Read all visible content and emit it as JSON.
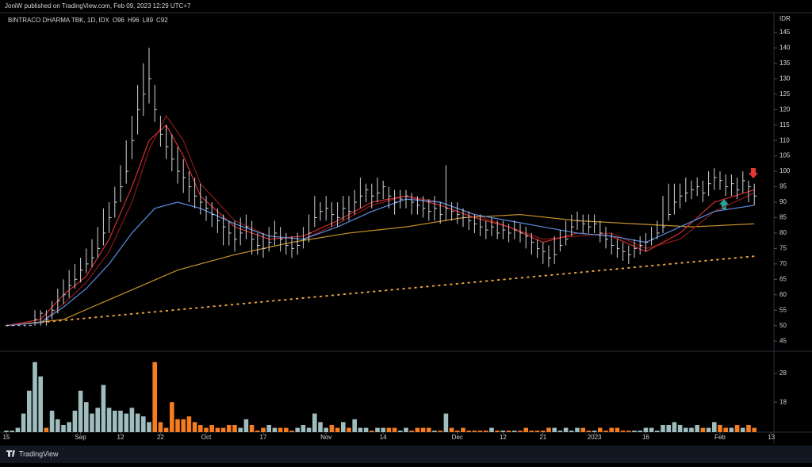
{
  "header": "JoniW published on TradingView.com, Feb 09, 2023 12:29 UTC+7",
  "footer": "TradingView",
  "chart_data": {
    "type": "ohlc",
    "symbol": "BINTRACO DHARMA TBK, 1D, IDX",
    "ohlc_labels": [
      "O96",
      "H96",
      "L89",
      "C92"
    ],
    "currency": "IDR",
    "xlim": [
      0,
      134
    ],
    "xticks": [
      {
        "value": 0,
        "label": "15"
      },
      {
        "value": 13,
        "label": "Sep"
      },
      {
        "value": 20,
        "label": "12"
      },
      {
        "value": 27,
        "label": "22"
      },
      {
        "value": 35,
        "label": "Oct"
      },
      {
        "value": 45,
        "label": "17"
      },
      {
        "value": 56,
        "label": "Nov"
      },
      {
        "value": 66,
        "label": "14"
      },
      {
        "value": 79,
        "label": "Dec"
      },
      {
        "value": 87,
        "label": "12"
      },
      {
        "value": 94,
        "label": "21"
      },
      {
        "value": 103,
        "label": "2023"
      },
      {
        "value": 112,
        "label": "16"
      },
      {
        "value": 125,
        "label": "Feb"
      },
      {
        "value": 134,
        "label": "13"
      }
    ],
    "ylim": [
      41.7,
      150.9
    ],
    "yticks": [
      45,
      50,
      55,
      60,
      65,
      70,
      75,
      80,
      85,
      90,
      95,
      100,
      105,
      110,
      115,
      120,
      125,
      130,
      135,
      140,
      145
    ],
    "bar_color": "#d1d4dc",
    "high": [
      50,
      50,
      50,
      50,
      50,
      55,
      55,
      55,
      58,
      62,
      65,
      68,
      70,
      72,
      75,
      78,
      82,
      88,
      90,
      95,
      102,
      110,
      118,
      128,
      135,
      140,
      128,
      118,
      115,
      112,
      108,
      104,
      100,
      98,
      96,
      92,
      90,
      88,
      86,
      84,
      84,
      85,
      86,
      84,
      80,
      80,
      82,
      84,
      82,
      80,
      79,
      80,
      82,
      86,
      92,
      90,
      92,
      90,
      90,
      92,
      92,
      94,
      98,
      96,
      96,
      98,
      97,
      95,
      94,
      94,
      94,
      93,
      92,
      92,
      91,
      92,
      90,
      102,
      90,
      90,
      88,
      87,
      86,
      86,
      84,
      85,
      84,
      84,
      83,
      84,
      83,
      82,
      80,
      78,
      77,
      76,
      79,
      81,
      84,
      86,
      87,
      86,
      86,
      86,
      84,
      82,
      80,
      78,
      77,
      76,
      78,
      79,
      80,
      82,
      84,
      92,
      96,
      96,
      96,
      98,
      97,
      98,
      97,
      100,
      101,
      100,
      99,
      99,
      98,
      100,
      97,
      96
    ],
    "low": [
      50,
      50,
      50,
      50,
      50,
      50,
      50,
      50,
      52,
      54,
      57,
      59,
      62,
      64,
      67,
      69,
      72,
      76,
      80,
      85,
      90,
      96,
      104,
      112,
      118,
      122,
      116,
      108,
      104,
      100,
      96,
      93,
      90,
      88,
      86,
      84,
      82,
      80,
      76,
      76,
      74,
      76,
      78,
      73,
      73,
      72,
      74,
      76,
      74,
      73,
      72,
      73,
      75,
      77,
      82,
      84,
      84,
      82,
      82,
      84,
      84,
      86,
      88,
      90,
      88,
      90,
      91,
      88,
      86,
      88,
      88,
      86,
      86,
      85,
      84,
      84,
      83,
      84,
      84,
      83,
      82,
      81,
      80,
      79,
      78,
      79,
      78,
      78,
      77,
      78,
      77,
      75,
      73,
      72,
      70,
      69,
      70,
      74,
      76,
      79,
      81,
      80,
      80,
      80,
      77,
      75,
      73,
      72,
      71,
      70,
      72,
      73,
      74,
      76,
      78,
      80,
      84,
      86,
      88,
      90,
      91,
      92,
      90,
      92,
      94,
      94,
      92,
      92,
      91,
      93,
      90,
      89
    ],
    "close": [
      50,
      50,
      50,
      50,
      50,
      52,
      54,
      52,
      55,
      58,
      60,
      63,
      65,
      68,
      70,
      72,
      75,
      80,
      85,
      90,
      95,
      100,
      110,
      120,
      125,
      130,
      120,
      112,
      108,
      104,
      100,
      98,
      95,
      92,
      90,
      88,
      86,
      84,
      82,
      80,
      78,
      80,
      82,
      78,
      76,
      75,
      77,
      80,
      78,
      76,
      75,
      76,
      78,
      80,
      85,
      87,
      88,
      86,
      85,
      88,
      87,
      90,
      92,
      94,
      92,
      93,
      95,
      92,
      90,
      91,
      92,
      90,
      89,
      88,
      87,
      88,
      86,
      88,
      87,
      86,
      85,
      84,
      83,
      82,
      81,
      82,
      80,
      81,
      80,
      81,
      80,
      79,
      77,
      75,
      74,
      72,
      73,
      76,
      78,
      82,
      84,
      83,
      82,
      83,
      80,
      78,
      76,
      75,
      74,
      73,
      75,
      76,
      77,
      78,
      80,
      82,
      86,
      90,
      92,
      93,
      94,
      95,
      93,
      96,
      98,
      97,
      95,
      96,
      94,
      97,
      95,
      92
    ],
    "lines": [
      {
        "color": "#c8922a",
        "dotted": false,
        "x": [
          0,
          10,
          20,
          30,
          40,
          50,
          60,
          70,
          80,
          90,
          100,
          110,
          120,
          131
        ],
        "values": [
          50,
          52,
          60,
          68,
          73,
          77,
          80,
          82,
          85,
          86,
          84,
          83,
          82,
          83
        ]
      },
      {
        "color": "#e8a23c",
        "dotted": true,
        "x": [
          0,
          131
        ],
        "values": [
          50,
          72.5
        ]
      },
      {
        "color": "#8b1a1a",
        "dotted": false,
        "x": [
          0,
          6,
          10,
          14,
          18,
          22,
          25,
          28,
          31,
          34,
          40,
          46,
          52,
          58,
          64,
          70,
          76,
          82,
          88,
          94,
          100,
          106,
          112,
          118,
          124,
          131
        ],
        "values": [
          50,
          51,
          57,
          64,
          74,
          90,
          107,
          118,
          110,
          96,
          84,
          79,
          78,
          83,
          89,
          92,
          90,
          86,
          82,
          78,
          79,
          80,
          75,
          78,
          87,
          93
        ]
      },
      {
        "color": "#d32f2f",
        "dotted": false,
        "x": [
          0,
          6,
          10,
          14,
          18,
          22,
          25,
          28,
          31,
          34,
          40,
          46,
          52,
          58,
          64,
          70,
          76,
          82,
          88,
          94,
          100,
          106,
          112,
          118,
          124,
          131
        ],
        "values": [
          50,
          52,
          60,
          66,
          78,
          95,
          110,
          115,
          105,
          92,
          82,
          78,
          79,
          84,
          90,
          92,
          89,
          85,
          82,
          77,
          80,
          79,
          74,
          80,
          90,
          94
        ]
      },
      {
        "color": "#5b8de0",
        "dotted": false,
        "x": [
          0,
          6,
          10,
          14,
          18,
          22,
          26,
          30,
          34,
          40,
          46,
          52,
          58,
          64,
          70,
          76,
          82,
          88,
          94,
          100,
          106,
          112,
          118,
          124,
          131
        ],
        "values": [
          50,
          51,
          56,
          62,
          70,
          80,
          88,
          90,
          88,
          83,
          79,
          78,
          82,
          87,
          91,
          90,
          86,
          84,
          82,
          80,
          79,
          77,
          82,
          87,
          89
        ]
      }
    ],
    "volume": {
      "ylim": [
        7.5,
        35.8
      ],
      "yticks": [
        18,
        28
      ],
      "up_color": "#9fbcbe",
      "down_color": "#f57c1f",
      "values": [
        8,
        8,
        9,
        14,
        22,
        32,
        27,
        9,
        15,
        12,
        10,
        11,
        15,
        22,
        18,
        14,
        16,
        24,
        16,
        15,
        15,
        14,
        16,
        14,
        13,
        11,
        32,
        11,
        9,
        18,
        12,
        12,
        13,
        11,
        10,
        9,
        10,
        9,
        9,
        10,
        10,
        9,
        12,
        10,
        8,
        9,
        10,
        9,
        9,
        9,
        8,
        9,
        10,
        9,
        14,
        11,
        9,
        10,
        9,
        11,
        9,
        12,
        9,
        9,
        8,
        9,
        9,
        9,
        9,
        8,
        9,
        8,
        9,
        9,
        9,
        8,
        8,
        14,
        9,
        8,
        9,
        8,
        8,
        8,
        8,
        9,
        8,
        8,
        8,
        8,
        8,
        9,
        8,
        8,
        8,
        9,
        9,
        8,
        9,
        8,
        9,
        9,
        8,
        8,
        9,
        8,
        9,
        9,
        8,
        8,
        8,
        8,
        9,
        9,
        8,
        10,
        10,
        11,
        10,
        9,
        9,
        10,
        9,
        9,
        11,
        10,
        9,
        9,
        10,
        9,
        10,
        9
      ]
    }
  }
}
